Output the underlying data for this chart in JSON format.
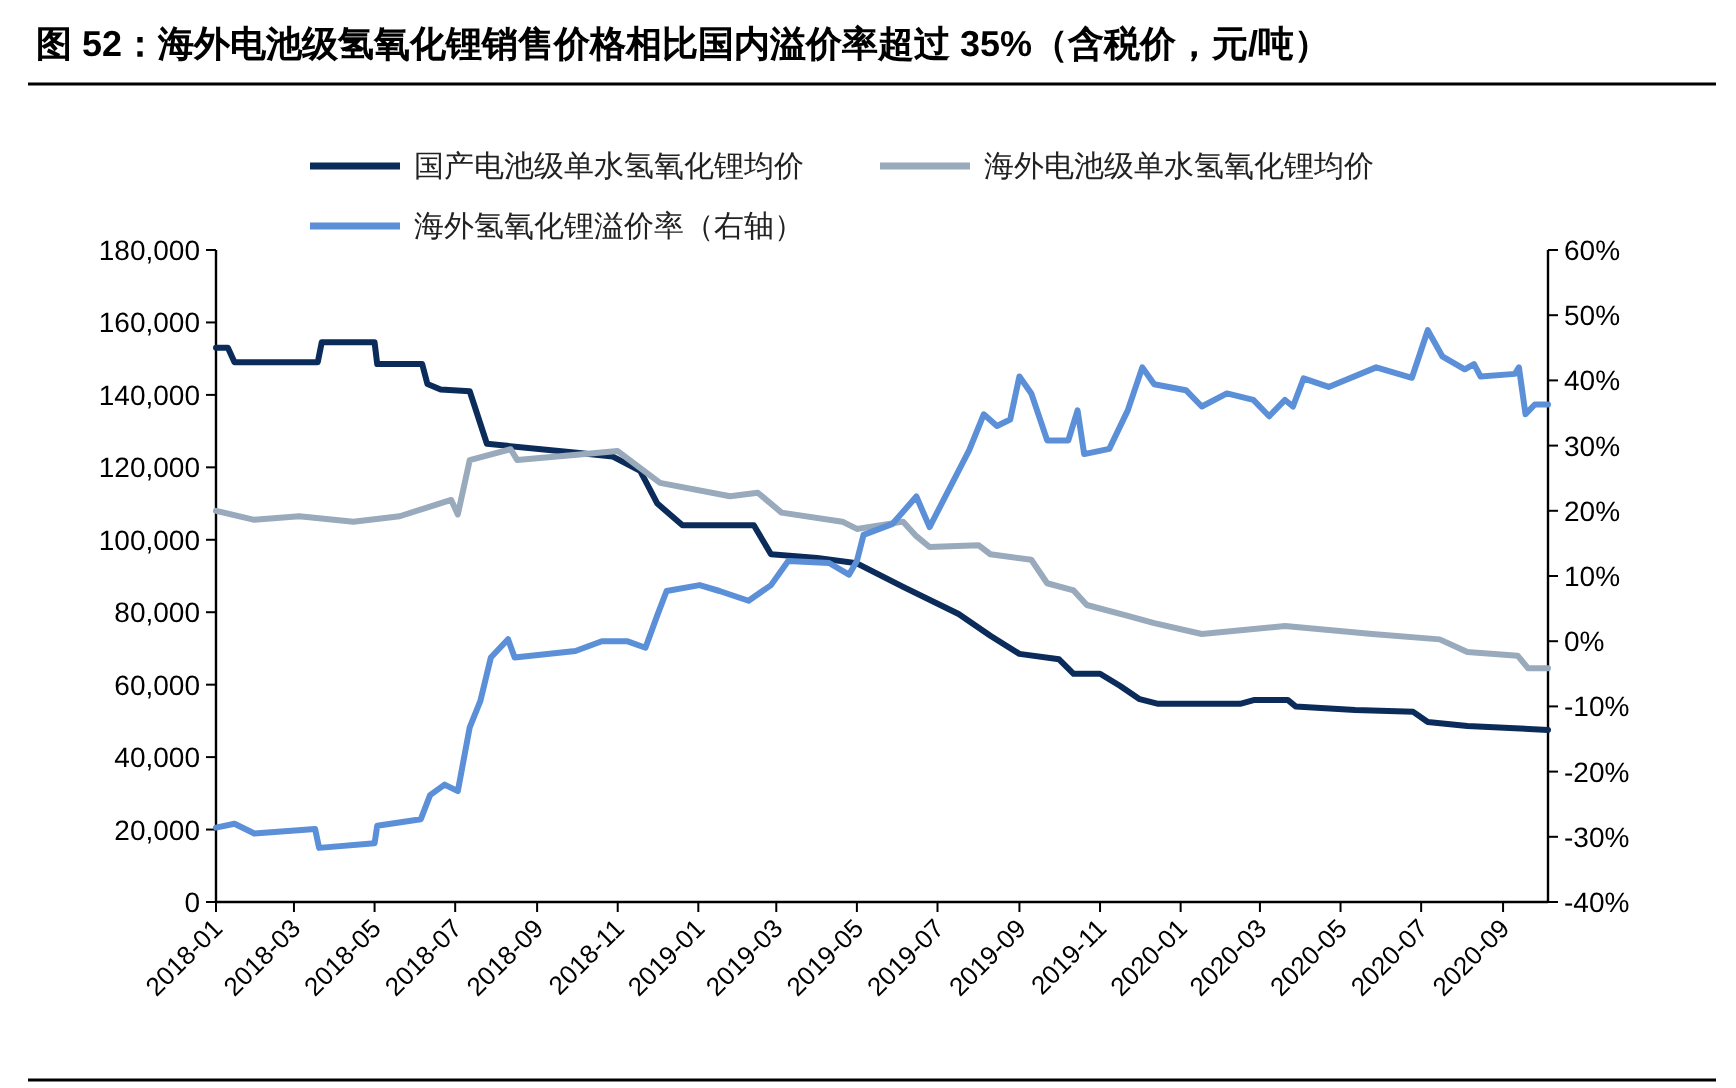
{
  "chart_data": {
    "type": "line",
    "title": "图 52：海外电池级氢氧化锂销售价格相比国内溢价率超过 35%（含税价，元/吨）",
    "xlim": [
      "2018-01-01",
      "2020-10-05"
    ],
    "xticks": [
      "2018-01",
      "2018-03",
      "2018-05",
      "2018-07",
      "2018-09",
      "2018-11",
      "2019-01",
      "2019-03",
      "2019-05",
      "2019-07",
      "2019-09",
      "2019-11",
      "2020-01",
      "2020-03",
      "2020-05",
      "2020-07",
      "2020-09"
    ],
    "ylim": [
      0,
      180000
    ],
    "yticks": [
      0,
      {
        "value": 20000,
        "label": "20,000"
      },
      {
        "value": 40000,
        "label": "40,000"
      },
      {
        "value": 60000,
        "label": "60,000"
      },
      {
        "value": 80000,
        "label": "80,000"
      },
      {
        "value": 100000,
        "label": "100,000"
      },
      {
        "value": 120000,
        "label": "120,000"
      },
      {
        "value": 140000,
        "label": "140,000"
      },
      {
        "value": 160000,
        "label": "160,000"
      },
      {
        "value": 180000,
        "label": "180,000"
      }
    ],
    "y2lim": [
      -40,
      60
    ],
    "y2ticks": [
      {
        "value": -40,
        "label": "-40%"
      },
      {
        "value": -30,
        "label": "-30%"
      },
      {
        "value": -20,
        "label": "-20%"
      },
      {
        "value": -10,
        "label": "-10%"
      },
      {
        "value": 0,
        "label": "0%"
      },
      {
        "value": 10,
        "label": "10%"
      },
      {
        "value": 20,
        "label": "20%"
      },
      {
        "value": 30,
        "label": "30%"
      },
      {
        "value": 40,
        "label": "40%"
      },
      {
        "value": 50,
        "label": "50%"
      },
      {
        "value": 60,
        "label": "60%"
      }
    ],
    "legend": "top",
    "grid": false,
    "line_style": "solid",
    "marker": "none",
    "series": [
      {
        "name": "国产电池级单水氢氧化锂均价",
        "color": "#0b2c5a",
        "x": [
          "2018-01-01",
          "2018-01-10",
          "2018-01-15",
          "2018-03-19",
          "2018-03-22",
          "2018-05-01",
          "2018-05-03",
          "2018-06-06",
          "2018-06-10",
          "2018-06-20",
          "2018-07-12",
          "2018-07-25",
          "2018-10-01",
          "2018-10-28",
          "2018-11-18",
          "2018-12-01",
          "2018-12-20",
          "2019-02-12",
          "2019-02-25",
          "2019-04-01",
          "2019-05-01",
          "2019-06-05",
          "2019-07-17",
          "2019-08-10",
          "2019-09-01",
          "2019-10-01",
          "2019-10-12",
          "2019-11-01",
          "2019-11-16",
          "2019-12-01",
          "2019-12-15",
          "2020-02-15",
          "2020-02-26",
          "2020-03-22",
          "2020-03-28",
          "2020-05-12",
          "2020-06-25",
          "2020-07-06",
          "2020-08-05",
          "2020-09-10",
          "2020-10-05"
        ],
        "values": [
          153000,
          153000,
          149000,
          149000,
          154500,
          154500,
          148500,
          148500,
          143000,
          141500,
          141000,
          126500,
          124000,
          123000,
          119000,
          110000,
          104000,
          104000,
          96000,
          95000,
          93500,
          87000,
          79500,
          73500,
          68500,
          67000,
          63000,
          63000,
          59700,
          56000,
          54700,
          54700,
          55800,
          55800,
          54000,
          53000,
          52500,
          49700,
          48600,
          48000,
          47500
        ]
      },
      {
        "name": "海外电池级单水氢氧化锂均价",
        "color": "#98aabb",
        "x": [
          "2018-01-01",
          "2018-01-30",
          "2018-03-05",
          "2018-04-15",
          "2018-05-20",
          "2018-06-28",
          "2018-07-03",
          "2018-07-12",
          "2018-08-12",
          "2018-08-17",
          "2018-10-01",
          "2018-11-01",
          "2018-12-03",
          "2019-01-25",
          "2019-02-15",
          "2019-03-05",
          "2019-04-20",
          "2019-05-01",
          "2019-06-05",
          "2019-06-15",
          "2019-06-25",
          "2019-08-01",
          "2019-08-10",
          "2019-09-10",
          "2019-09-22",
          "2019-10-12",
          "2019-10-22",
          "2019-11-22",
          "2019-12-12",
          "2020-01-17",
          "2020-03-20",
          "2020-05-25",
          "2020-07-15",
          "2020-08-05",
          "2020-09-12",
          "2020-09-20",
          "2020-10-05"
        ],
        "values": [
          108000,
          105500,
          106500,
          105000,
          106500,
          111000,
          107000,
          122000,
          125000,
          122000,
          123500,
          124500,
          115700,
          112000,
          113000,
          107500,
          105000,
          103000,
          105000,
          101000,
          98000,
          98500,
          96000,
          94500,
          88000,
          86000,
          82000,
          79000,
          77000,
          74000,
          76200,
          74000,
          72500,
          69000,
          68000,
          64500,
          64500
        ]
      },
      {
        "name": "海外氢氧化锂溢价率（右轴）",
        "color": "#5b8fd8",
        "axis": "y2",
        "x": [
          "2018-01-01",
          "2018-01-15",
          "2018-01-30",
          "2018-03-17",
          "2018-03-20",
          "2018-05-01",
          "2018-05-03",
          "2018-06-05",
          "2018-06-12",
          "2018-06-23",
          "2018-07-03",
          "2018-07-12",
          "2018-07-20",
          "2018-07-28",
          "2018-08-10",
          "2018-08-15",
          "2018-09-30",
          "2018-10-20",
          "2018-11-08",
          "2018-11-22",
          "2018-12-01",
          "2018-12-08",
          "2019-01-02",
          "2019-01-17",
          "2019-02-08",
          "2019-02-25",
          "2019-03-10",
          "2019-04-10",
          "2019-04-25",
          "2019-05-01",
          "2019-05-06",
          "2019-05-28",
          "2019-06-15",
          "2019-06-25",
          "2019-07-25",
          "2019-08-05",
          "2019-08-15",
          "2019-08-25",
          "2019-09-01",
          "2019-09-10",
          "2019-09-22",
          "2019-10-08",
          "2019-10-15",
          "2019-10-20",
          "2019-11-08",
          "2019-11-22",
          "2019-12-03",
          "2019-12-12",
          "2020-01-05",
          "2020-01-17",
          "2020-02-05",
          "2020-02-25",
          "2020-03-08",
          "2020-03-20",
          "2020-03-26",
          "2020-04-03",
          "2020-04-22",
          "2020-05-28",
          "2020-06-24",
          "2020-07-06",
          "2020-07-17",
          "2020-08-03",
          "2020-08-10",
          "2020-08-15",
          "2020-09-10",
          "2020-09-13",
          "2020-09-18",
          "2020-09-25",
          "2020-10-05"
        ],
        "values": [
          -28.6,
          -28,
          -29.5,
          -28.8,
          -31.7,
          -31,
          -28.3,
          -27.3,
          -23.6,
          -22,
          -23,
          -13.2,
          -9.2,
          -2.5,
          0.3,
          -2.5,
          -1.5,
          0,
          0,
          -1,
          4,
          7.7,
          8.6,
          7.7,
          6.2,
          8.6,
          12.3,
          12,
          10.2,
          12.3,
          16.3,
          18,
          22.2,
          17.5,
          29.3,
          34.8,
          33,
          34,
          40.6,
          38,
          30.8,
          30.8,
          35.4,
          28.7,
          29.5,
          35.4,
          42,
          39.4,
          38.5,
          36,
          38,
          37,
          34.5,
          37,
          36,
          40.3,
          39,
          42,
          40.4,
          47.7,
          43.7,
          41.7,
          42.5,
          40.6,
          41,
          42,
          34.8,
          36.3,
          36.3
        ]
      }
    ]
  }
}
